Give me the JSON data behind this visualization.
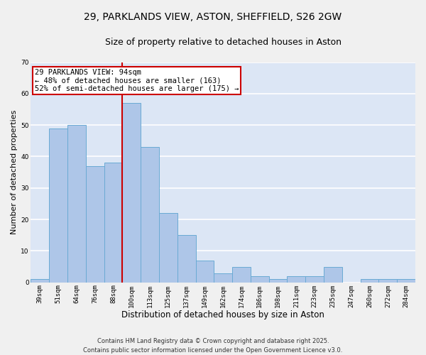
{
  "title_line1": "29, PARKLANDS VIEW, ASTON, SHEFFIELD, S26 2GW",
  "title_line2": "Size of property relative to detached houses in Aston",
  "xlabel": "Distribution of detached houses by size in Aston",
  "ylabel": "Number of detached properties",
  "categories": [
    "39sqm",
    "51sqm",
    "64sqm",
    "76sqm",
    "88sqm",
    "100sqm",
    "113sqm",
    "125sqm",
    "137sqm",
    "149sqm",
    "162sqm",
    "174sqm",
    "186sqm",
    "198sqm",
    "211sqm",
    "223sqm",
    "235sqm",
    "247sqm",
    "260sqm",
    "272sqm",
    "284sqm"
  ],
  "values": [
    1,
    49,
    50,
    37,
    38,
    57,
    43,
    22,
    15,
    7,
    3,
    5,
    2,
    1,
    2,
    2,
    5,
    0,
    1,
    1,
    1
  ],
  "bar_color": "#aec6e8",
  "bar_edge_color": "#6aaad4",
  "vline_x": 4.5,
  "vline_color": "#cc0000",
  "annotation_line1": "29 PARKLANDS VIEW: 94sqm",
  "annotation_line2": "← 48% of detached houses are smaller (163)",
  "annotation_line3": "52% of semi-detached houses are larger (175) →",
  "annotation_box_color": "#ffffff",
  "annotation_box_edge_color": "#cc0000",
  "ylim": [
    0,
    70
  ],
  "yticks": [
    0,
    10,
    20,
    30,
    40,
    50,
    60,
    70
  ],
  "background_color": "#dce6f5",
  "grid_color": "#ffffff",
  "fig_background": "#f0f0f0",
  "footer_text": "Contains HM Land Registry data © Crown copyright and database right 2025.\nContains public sector information licensed under the Open Government Licence v3.0.",
  "title_fontsize": 10,
  "subtitle_fontsize": 9,
  "xlabel_fontsize": 8.5,
  "ylabel_fontsize": 8,
  "tick_fontsize": 6.5,
  "annotation_fontsize": 7.5,
  "footer_fontsize": 6
}
